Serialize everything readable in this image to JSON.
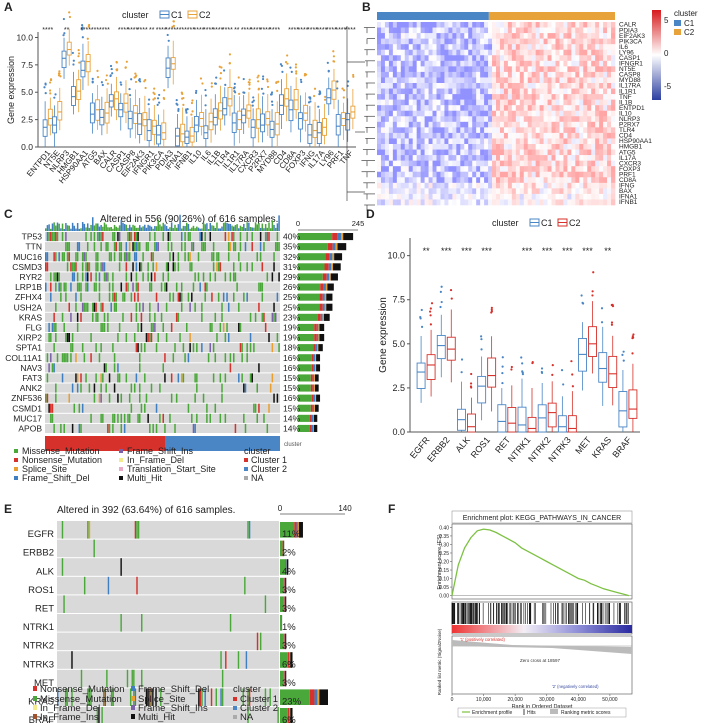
{
  "colors": {
    "c1": "#4a86c5",
    "c2": "#e8a23a",
    "red": "#d7312b",
    "blue": "#3b4ea0",
    "green": "#4aa83a",
    "gsea_line": "#7cc142",
    "nonsense": "#d7312b",
    "missense": "#4aa83a",
    "frameshift_del": "#3f7fc1",
    "frameshift_ins": "#7b61a8",
    "splice": "#e89f2f",
    "inframe_del": "#f4ec8a",
    "translation": "#e8aac6",
    "multi_hit": "#111111",
    "inframe_ins": "#a0522d"
  },
  "panels": {
    "A": "A",
    "B": "B",
    "C": "C",
    "D": "D",
    "E": "E",
    "F": "F"
  },
  "panelA": {
    "legend_title": "cluster",
    "legend_c1": "C1",
    "legend_c2": "C2",
    "ylabel": "Gene expression",
    "yticks": [
      "0.0",
      "2.5",
      "5.0",
      "7.5",
      "10.0"
    ],
    "genes": [
      "ENTPD1",
      "NT5E",
      "NLRP3",
      "HMGB1",
      "HSP90AA1",
      "ATG5",
      "BAX",
      "CALR",
      "CASP1",
      "CASP8",
      "EIF2AK3",
      "IFNGR1",
      "PIK3CA",
      "PDIA3",
      "IFNA1",
      "IFNB1",
      "IL10",
      "IL6",
      "IL1B",
      "TLR4",
      "IL1R1",
      "IL17RA",
      "CXCR3",
      "P2RX7",
      "MYD88",
      "CD4",
      "CD8A",
      "FOXP3",
      "IFNG",
      "IL17A",
      "LY96",
      "PRF1",
      "TNF"
    ],
    "sig": [
      "****",
      "",
      "**",
      "",
      "****",
      "***",
      "****",
      "",
      "****",
      "****",
      "****",
      "**",
      "****",
      "****",
      "***",
      "****",
      "****",
      "****",
      "****",
      "****",
      "**",
      "****",
      "****",
      "****",
      "****",
      "",
      "****",
      "****",
      "****",
      "****",
      "****",
      "****",
      "****"
    ],
    "c1_median": [
      1.8,
      2.0,
      8.1,
      4.6,
      7.0,
      3.0,
      2.7,
      4.2,
      3.4,
      2.6,
      2.1,
      1.5,
      1.1,
      7.2,
      1.0,
      0.9,
      2.0,
      1.3,
      2.7,
      3.5,
      2.2,
      2.9,
      1.8,
      2.0,
      1.6,
      3.8,
      3.4,
      2.6,
      1.1,
      1.3,
      4.5,
      1.9,
      2.5
    ],
    "c2_median": [
      2.6,
      3.2,
      8.9,
      5.1,
      7.8,
      3.4,
      3.1,
      4.4,
      4.0,
      3.1,
      2.5,
      1.9,
      1.3,
      7.6,
      1.2,
      1.0,
      2.6,
      2.3,
      3.3,
      4.4,
      2.5,
      3.3,
      2.5,
      2.6,
      2.1,
      4.4,
      4.3,
      3.1,
      1.5,
      1.8,
      5.2,
      2.6,
      3.2
    ]
  },
  "panelB": {
    "legend_title": "cluster",
    "legend_c1": "C1",
    "legend_c2": "C2",
    "scale_ticks": [
      "5",
      "0",
      "-5"
    ],
    "genes": [
      "CALR",
      "PDIA3",
      "EIF2AK3",
      "PIK3CA",
      "IL6",
      "LY96",
      "CASP1",
      "IFNGR1",
      "NT5E",
      "CASP8",
      "MYD88",
      "IL17RA",
      "IL1R1",
      "TNF",
      "IL1B",
      "ENTPD1",
      "IL10",
      "NLRP3",
      "P2RX7",
      "TLR4",
      "CD4",
      "HSP90AA1",
      "HMGB1",
      "ATG5",
      "IL17A",
      "CXCR3",
      "FOXP3",
      "PRF1",
      "CD8A",
      "IFNG",
      "BAX",
      "IFNA1",
      "IFNB1"
    ]
  },
  "panelC": {
    "title": "Altered in 556 (90.26%) of 616 samples.",
    "bar_max_label": "245",
    "genes": [
      "TP53",
      "TTN",
      "MUC16",
      "CSMD3",
      "RYR2",
      "LRP1B",
      "ZFHX4",
      "USH2A",
      "KRAS",
      "FLG",
      "XIRP2",
      "SPTA1",
      "COL11A1",
      "NAV3",
      "FAT3",
      "ANK2",
      "ZNF536",
      "CSMD1",
      "MUC17",
      "APOB"
    ],
    "percents": [
      "40%",
      "35%",
      "32%",
      "31%",
      "29%",
      "26%",
      "25%",
      "25%",
      "23%",
      "19%",
      "19%",
      "18%",
      "16%",
      "16%",
      "15%",
      "15%",
      "16%",
      "15%",
      "14%",
      "14%"
    ],
    "fractions": [
      0.4,
      0.35,
      0.32,
      0.31,
      0.29,
      0.26,
      0.25,
      0.25,
      0.23,
      0.19,
      0.19,
      0.18,
      0.16,
      0.16,
      0.15,
      0.15,
      0.16,
      0.15,
      0.14,
      0.14
    ],
    "cluster_label": "cluster",
    "legend": {
      "missense": "Missense_Mutation",
      "nonsense": "Nonsense_Mutation",
      "splice": "Splice_Site",
      "frameshift_del": "Frame_Shift_Del",
      "frameshift_ins": "Frame_Shift_Ins",
      "inframe_del": "In_Frame_Del",
      "translation": "Translation_Start_Site",
      "multi_hit": "Multi_Hit",
      "cluster_title": "cluster",
      "cluster1": "Cluster 1",
      "cluster2": "Cluster 2",
      "na": "NA"
    }
  },
  "panelD": {
    "legend_title": "cluster",
    "legend_c1": "C1",
    "legend_c2": "C2",
    "ylabel": "Gene expression",
    "yticks": [
      "0.0",
      "2.5",
      "5.0",
      "7.5",
      "10.0"
    ],
    "genes": [
      "EGFR",
      "ERBB2",
      "ALK",
      "ROS1",
      "RET",
      "NTRK1",
      "NTRK2",
      "NTRK3",
      "MET",
      "KRAS",
      "BRAF"
    ],
    "sig": [
      "**",
      "***",
      "***",
      "***",
      "",
      "***",
      "***",
      "***",
      "***",
      "**",
      ""
    ],
    "c1_median": [
      3.4,
      4.9,
      0.7,
      2.6,
      0.6,
      0.4,
      0.8,
      0.3,
      4.4,
      3.6,
      1.2
    ],
    "c2_median": [
      3.8,
      4.7,
      0.3,
      3.2,
      0.5,
      0.2,
      1.1,
      0.2,
      5.0,
      3.3,
      1.3
    ]
  },
  "panelE": {
    "title": "Altered in 392 (63.64%) of 616 samples.",
    "bar_max_label": "140",
    "genes": [
      "EGFR",
      "ERBB2",
      "ALK",
      "ROS1",
      "RET",
      "NTRK1",
      "NTRK2",
      "NTRK3",
      "MET",
      "KRAS",
      "BRAF"
    ],
    "percents": [
      "11%",
      "2%",
      "4%",
      "3%",
      "3%",
      "1%",
      "3%",
      "6%",
      "3%",
      "23%",
      "6%"
    ],
    "fractions": [
      0.11,
      0.02,
      0.04,
      0.03,
      0.03,
      0.01,
      0.03,
      0.06,
      0.03,
      0.23,
      0.06
    ],
    "cluster_label": "cluster",
    "legend": {
      "nonsense": "Nonsense_Mutation",
      "missense": "Missense_Mutation",
      "inframe_del": "In_Frame_Del",
      "frameshift_del": "Frame_Shift_Del",
      "splice": "Splice_Site",
      "frameshift_ins": "Frame_Shift_Ins",
      "multi_hit": "Multi_Hit",
      "inframe_ins": "In_Frame_Ins",
      "cluster_title": "cluster",
      "cluster1": "Cluster 1",
      "cluster2": "Cluster 2",
      "na": "NA"
    }
  },
  "panelF": {
    "title": "Enrichment plot: KEGG_PATHWAYS_IN_CANCER",
    "ylabel_es": "Enrichment score (ES)",
    "ylabel_rank": "Ranked list metric (Signal2Noise)",
    "xlabel": "Rank in Ordered Dataset",
    "es_ticks": [
      "0.40",
      "0.35",
      "0.30",
      "0.25",
      "0.20",
      "0.15",
      "0.10",
      "0.05",
      "0.00"
    ],
    "x_ticks": [
      "0",
      "10,000",
      "20,000",
      "30,000",
      "40,000",
      "50,000"
    ],
    "pos_label": "'1' (positively correlated)",
    "neg_label": "'2' (negatively correlated)",
    "zero_cross": "Zero cross at 18597",
    "legend_profile": "Enrichment profile",
    "legend_hits": "Hits",
    "legend_metric": "Ranking metric scores",
    "chart_data": {
      "type": "line",
      "title": "Enrichment plot: KEGG_PATHWAYS_IN_CANCER",
      "xlabel": "Rank in Ordered Dataset",
      "ylabel": "Enrichment score (ES)",
      "x": [
        0,
        2000,
        4000,
        6000,
        8000,
        10000,
        12000,
        14000,
        16000,
        18000,
        20000,
        22000,
        24000,
        26000,
        28000,
        30000,
        32000,
        34000,
        36000,
        38000,
        40000,
        42000,
        44000,
        46000,
        48000,
        50000,
        52000,
        54000,
        56000
      ],
      "y": [
        0.0,
        0.18,
        0.28,
        0.34,
        0.38,
        0.39,
        0.385,
        0.37,
        0.35,
        0.33,
        0.31,
        0.28,
        0.26,
        0.24,
        0.22,
        0.2,
        0.18,
        0.16,
        0.14,
        0.12,
        0.1,
        0.09,
        0.07,
        0.055,
        0.04,
        0.03,
        0.02,
        0.01,
        0.0
      ],
      "xlim": [
        0,
        57000
      ],
      "ylim": [
        -0.02,
        0.42
      ]
    }
  }
}
